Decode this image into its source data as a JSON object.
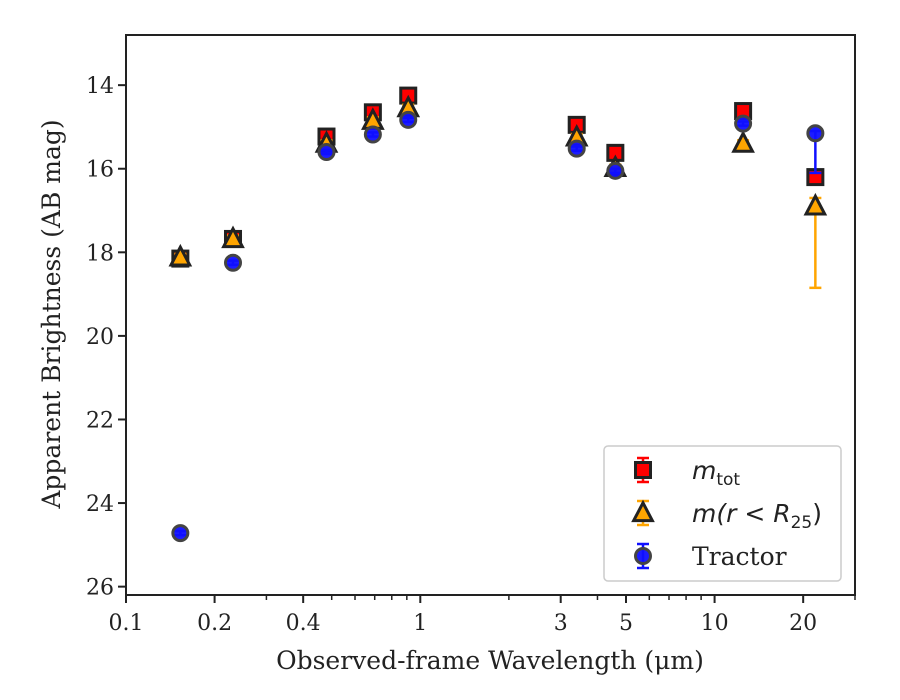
{
  "chart_data": {
    "type": "scatter",
    "xlabel": "Observed-frame Wavelength (μm)",
    "ylabel": "Apparent Brightness (AB mag)",
    "xscale": "log",
    "xlim": [
      0.1,
      30
    ],
    "ylim": [
      26.2,
      12.8
    ],
    "y_inverted": true,
    "x_ticks": [
      0.1,
      0.2,
      0.4,
      1,
      3,
      5,
      10,
      20
    ],
    "x_tick_labels": [
      "0.1",
      "0.2",
      "0.4",
      "1",
      "3",
      "5",
      "10",
      "20"
    ],
    "y_ticks": [
      14,
      16,
      18,
      20,
      22,
      24,
      26
    ],
    "y_tick_labels": [
      "14",
      "16",
      "18",
      "20",
      "22",
      "24",
      "26"
    ],
    "grid": false,
    "legend_position": "lower-right",
    "series": [
      {
        "name": "m_tot",
        "label_main": "m",
        "label_sub": "tot",
        "marker": "square",
        "color": "#ff0000",
        "edge_color": "#222222",
        "error_color": "#ff0000",
        "points": [
          {
            "x": 0.153,
            "y": 18.15,
            "err": 0.1
          },
          {
            "x": 0.231,
            "y": 17.68,
            "err": 0.1
          },
          {
            "x": 0.48,
            "y": 15.23,
            "err": 0.08
          },
          {
            "x": 0.69,
            "y": 14.65,
            "err": 0.08
          },
          {
            "x": 0.91,
            "y": 14.25,
            "err": 0.08
          },
          {
            "x": 3.4,
            "y": 14.95,
            "err": 0.08
          },
          {
            "x": 4.6,
            "y": 15.62,
            "err": 0.08
          },
          {
            "x": 12.5,
            "y": 14.62,
            "err": 0.1
          },
          {
            "x": 22,
            "y": 16.2,
            "err": 0.1
          }
        ]
      },
      {
        "name": "m(r < R25)",
        "label_main": "m(r < R",
        "label_sub": "25",
        "label_tail": ")",
        "marker": "triangle",
        "color": "#ffa500",
        "edge_color": "#222222",
        "error_color": "#ffa500",
        "points": [
          {
            "x": 0.153,
            "y": 18.12,
            "err": 0.08
          },
          {
            "x": 0.231,
            "y": 17.68,
            "err": 0.08
          },
          {
            "x": 0.48,
            "y": 15.4,
            "err": 0.08
          },
          {
            "x": 0.69,
            "y": 14.85,
            "err": 0.08
          },
          {
            "x": 0.91,
            "y": 14.55,
            "err": 0.08
          },
          {
            "x": 3.4,
            "y": 15.25,
            "err": 0.08
          },
          {
            "x": 4.6,
            "y": 15.98,
            "err": 0.08
          },
          {
            "x": 12.5,
            "y": 15.4,
            "err": 0.08
          },
          {
            "x": 22,
            "y": 16.9,
            "err_low": 0.2,
            "err_high": 1.95
          }
        ]
      },
      {
        "name": "Tractor",
        "label_main": "Tractor",
        "marker": "circle",
        "color": "#1010ff",
        "edge_color": "#444444",
        "error_color": "#1010ff",
        "points": [
          {
            "x": 0.153,
            "y": 24.72,
            "err": 0.05
          },
          {
            "x": 0.231,
            "y": 18.25,
            "err": 0.05
          },
          {
            "x": 0.48,
            "y": 15.6,
            "err": 0.05
          },
          {
            "x": 0.69,
            "y": 15.18,
            "err": 0.05
          },
          {
            "x": 0.91,
            "y": 14.83,
            "err": 0.05
          },
          {
            "x": 3.4,
            "y": 15.52,
            "err": 0.05
          },
          {
            "x": 4.6,
            "y": 16.05,
            "err": 0.05
          },
          {
            "x": 12.5,
            "y": 14.92,
            "err": 0.05
          },
          {
            "x": 22,
            "y": 15.15,
            "err_low": 0.05,
            "err_high": 0.95
          }
        ]
      }
    ]
  }
}
